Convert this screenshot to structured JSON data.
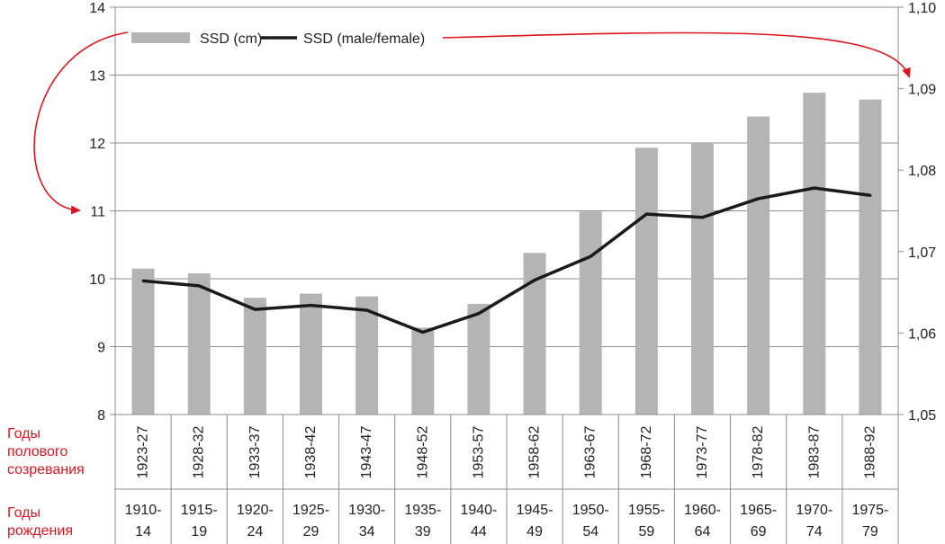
{
  "colors": {
    "bar": "#b4b4b4",
    "line": "#1a1a1a",
    "grid": "#8c8c8c",
    "annotation": "#e0141e"
  },
  "side_labels": {
    "puberty": [
      "Годы",
      "полового",
      "созревания"
    ],
    "birth": [
      "Годы",
      "рождения"
    ]
  },
  "chart_data": {
    "type": "bar",
    "categories": [
      "1923-27",
      "1928-32",
      "1933-37",
      "1938-42",
      "1943-47",
      "1948-52",
      "1953-57",
      "1958-62",
      "1963-67",
      "1968-72",
      "1973-77",
      "1978-82",
      "1983-87",
      "1988-92"
    ],
    "birth_years": [
      [
        "1910-",
        "14"
      ],
      [
        "1915-",
        "19"
      ],
      [
        "1920-",
        "24"
      ],
      [
        "1925-",
        "29"
      ],
      [
        "1930-",
        "34"
      ],
      [
        "1935-",
        "39"
      ],
      [
        "1940-",
        "44"
      ],
      [
        "1945-",
        "49"
      ],
      [
        "1950-",
        "54"
      ],
      [
        "1955-",
        "59"
      ],
      [
        "1960-",
        "64"
      ],
      [
        "1965-",
        "69"
      ],
      [
        "1970-",
        "74"
      ],
      [
        "1975-",
        "79"
      ]
    ],
    "series": [
      {
        "name": "SSD (cm)",
        "type": "bar",
        "axis": "left",
        "values": [
          10.15,
          10.08,
          9.72,
          9.78,
          9.74,
          9.28,
          9.63,
          10.38,
          10.99,
          11.93,
          12.0,
          12.39,
          12.74,
          12.64
        ]
      },
      {
        "name": "SSD (male/female)",
        "type": "line",
        "axis": "right",
        "values": [
          1.0664,
          1.0658,
          1.0629,
          1.0634,
          1.0628,
          1.0601,
          1.0624,
          1.0665,
          1.0694,
          1.0746,
          1.0742,
          1.0765,
          1.0778,
          1.0769
        ]
      }
    ],
    "ylim_left": [
      8,
      14
    ],
    "yticks_left": [
      "8",
      "9",
      "10",
      "11",
      "12",
      "13",
      "14"
    ],
    "ylim_right": [
      1.05,
      1.1
    ],
    "yticks_right": [
      "1,05",
      "1,06",
      "1,07",
      "1,08",
      "1,09",
      "1,10"
    ],
    "grid": true,
    "legend_position": "top-left",
    "annotations": [
      "arrow from legend 'SSD (cm)' to left axis",
      "arrow from legend 'SSD (male/female)' to right axis"
    ]
  }
}
